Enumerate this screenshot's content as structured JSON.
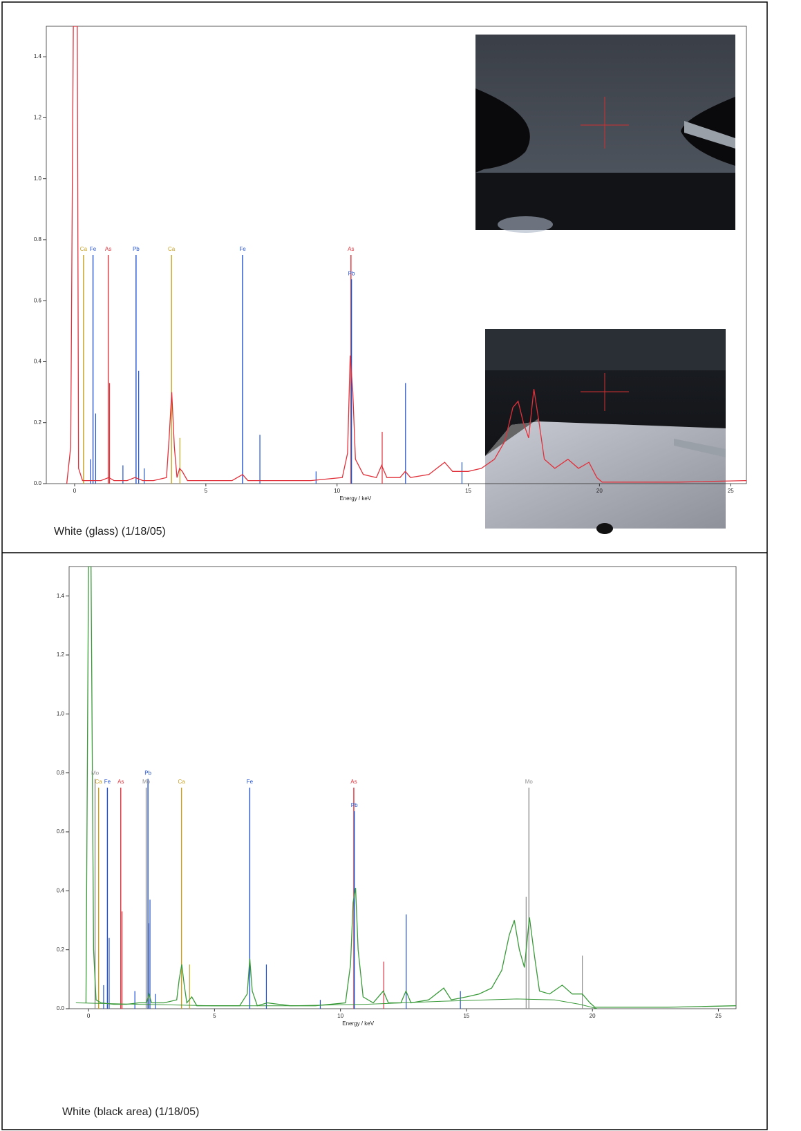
{
  "chart_data": [
    {
      "type": "line",
      "caption": "White (glass) (1/18/05)",
      "x_label": "Energy / keV",
      "xlim": [
        -1.08,
        25.6
      ],
      "xticks": [
        0,
        5,
        10,
        15,
        20,
        25
      ],
      "ylim": [
        0,
        1.5
      ],
      "yticks": [
        {
          "value": 0,
          "label": "0.0"
        },
        0.2,
        0.4,
        0.6,
        0.8,
        {
          "value": 1,
          "label": "1.0"
        },
        1.2,
        1.4
      ],
      "series": [
        {
          "color": "#e0303a",
          "x": [
            -0.3,
            -0.15,
            -0.05,
            0.1,
            0.15,
            0.3,
            0.6,
            1.0,
            1.3,
            1.5,
            2.0,
            2.3,
            2.6,
            3.0,
            3.5,
            3.6,
            3.7,
            3.8,
            3.9,
            4.0,
            4.1,
            4.3,
            5.0,
            6.0,
            6.4,
            6.6,
            7.5,
            9.0,
            10.2,
            10.4,
            10.5,
            10.6,
            10.7,
            11.0,
            11.5,
            11.7,
            11.9,
            12.4,
            12.6,
            12.8,
            13.5,
            14.1,
            14.4,
            15.0,
            15.5,
            16.0,
            16.4,
            16.7,
            16.9,
            17.1,
            17.3,
            17.5,
            17.7,
            17.9,
            18.3,
            18.8,
            19.2,
            19.6,
            19.9,
            20.1,
            21,
            23,
            25.6
          ],
          "values": [
            0,
            0.12,
            1.5,
            1.5,
            0.05,
            0.01,
            0.01,
            0.01,
            0.02,
            0.01,
            0.01,
            0.02,
            0.01,
            0.01,
            0.02,
            0.15,
            0.3,
            0.12,
            0.02,
            0.05,
            0.04,
            0.01,
            0.01,
            0.01,
            0.03,
            0.01,
            0.01,
            0.01,
            0.02,
            0.1,
            0.42,
            0.3,
            0.08,
            0.03,
            0.02,
            0.06,
            0.02,
            0.02,
            0.04,
            0.02,
            0.03,
            0.07,
            0.04,
            0.04,
            0.05,
            0.08,
            0.14,
            0.25,
            0.27,
            0.2,
            0.15,
            0.31,
            0.2,
            0.08,
            0.05,
            0.08,
            0.05,
            0.07,
            0.02,
            0.005,
            0.005,
            0.005,
            0.01
          ]
        }
      ],
      "markers": [
        {
          "label": "Ca",
          "x": 0.34,
          "height": 0.75,
          "color": "#c8a020"
        },
        {
          "label": "Fe",
          "x": 0.7,
          "height": 0.75,
          "color": "#2050d0"
        },
        {
          "label": "As",
          "x": 1.28,
          "height": 0.75,
          "color": "#e0303a"
        },
        {
          "label": "Pb",
          "x": 2.34,
          "height": 0.75,
          "color": "#2050d0"
        },
        {
          "label": "Ca",
          "x": 3.69,
          "height": 0.75,
          "color": "#c8a020"
        },
        {
          "label": "Fe",
          "x": 6.4,
          "height": 0.75,
          "color": "#2050d0"
        },
        {
          "label": "As",
          "x": 10.53,
          "height": 0.75,
          "color": "#e0303a"
        },
        {
          "label": "Pb",
          "x": 10.55,
          "height": 0.67,
          "color": "#2050d0"
        }
      ],
      "lines": [
        {
          "x": 0.6,
          "height": 0.08,
          "color": "#2050d0"
        },
        {
          "x": 0.8,
          "height": 0.23,
          "color": "#2050d0"
        },
        {
          "x": 1.33,
          "height": 0.33,
          "color": "#e0303a"
        },
        {
          "x": 1.84,
          "height": 0.06,
          "color": "#2050d0"
        },
        {
          "x": 2.44,
          "height": 0.37,
          "color": "#2050d0"
        },
        {
          "x": 2.65,
          "height": 0.05,
          "color": "#2050d0"
        },
        {
          "x": 4.01,
          "height": 0.15,
          "color": "#c8a020"
        },
        {
          "x": 7.06,
          "height": 0.16,
          "color": "#2050d0"
        },
        {
          "x": 9.2,
          "height": 0.04,
          "color": "#2050d0"
        },
        {
          "x": 11.72,
          "height": 0.17,
          "color": "#e0303a"
        },
        {
          "x": 12.61,
          "height": 0.33,
          "color": "#2050d0"
        },
        {
          "x": 14.76,
          "height": 0.07,
          "color": "#2050d0"
        }
      ]
    },
    {
      "type": "line",
      "caption": "White (black area) (1/18/05)",
      "x_label": "Energy / keV",
      "xlim": [
        -0.77,
        25.7
      ],
      "xticks": [
        0,
        5,
        10,
        15,
        20,
        25
      ],
      "ylim": [
        0,
        1.5
      ],
      "yticks": [
        {
          "value": 0,
          "label": "0.0"
        },
        0.2,
        0.4,
        0.6,
        0.8,
        {
          "value": 1,
          "label": "1.0"
        },
        1.2,
        1.4
      ],
      "series": [
        {
          "color": "#3a9a3a",
          "x": [
            -0.1,
            0.0,
            0.1,
            0.2,
            0.3,
            0.5,
            1.0,
            1.5,
            2.0,
            2.3,
            2.4,
            2.5,
            3.0,
            3.5,
            3.6,
            3.7,
            3.8,
            3.9,
            4.1,
            4.3,
            5.0,
            6.0,
            6.3,
            6.4,
            6.5,
            6.7,
            7.1,
            8.0,
            9.0,
            10.2,
            10.4,
            10.5,
            10.6,
            10.7,
            10.9,
            11.3,
            11.7,
            11.9,
            12.4,
            12.6,
            12.8,
            13.5,
            14.1,
            14.4,
            15.0,
            15.5,
            16.0,
            16.4,
            16.7,
            16.9,
            17.1,
            17.3,
            17.5,
            17.7,
            17.9,
            18.3,
            18.8,
            19.2,
            19.6,
            19.9,
            20.1,
            21,
            23,
            25.7
          ],
          "values": [
            0.02,
            1.5,
            1.5,
            0.2,
            0.03,
            0.02,
            0.015,
            0.015,
            0.02,
            0.02,
            0.05,
            0.02,
            0.02,
            0.03,
            0.1,
            0.15,
            0.08,
            0.02,
            0.04,
            0.01,
            0.01,
            0.01,
            0.05,
            0.17,
            0.06,
            0.01,
            0.02,
            0.01,
            0.01,
            0.02,
            0.15,
            0.36,
            0.41,
            0.2,
            0.04,
            0.02,
            0.06,
            0.02,
            0.02,
            0.06,
            0.02,
            0.03,
            0.07,
            0.03,
            0.04,
            0.05,
            0.07,
            0.13,
            0.25,
            0.3,
            0.2,
            0.14,
            0.31,
            0.18,
            0.06,
            0.05,
            0.08,
            0.05,
            0.05,
            0.02,
            0.005,
            0.005,
            0.005,
            0.01
          ]
        },
        {
          "color": "#3a9a3a",
          "x": [
            -0.5,
            2,
            5,
            8,
            11,
            14,
            17,
            18.5,
            19.5,
            20.2
          ],
          "values": [
            0.02,
            0.015,
            0.01,
            0.01,
            0.015,
            0.025,
            0.033,
            0.03,
            0.015,
            0.0
          ]
        }
      ],
      "markers": [
        {
          "label": "Mo",
          "x": 0.26,
          "height": 0.78,
          "color": "#909090"
        },
        {
          "label": "Ca",
          "x": 0.4,
          "height": 0.75,
          "color": "#c8a020"
        },
        {
          "label": "Fe",
          "x": 0.75,
          "height": 0.75,
          "color": "#2050d0"
        },
        {
          "label": "As",
          "x": 1.28,
          "height": 0.75,
          "color": "#e0303a"
        },
        {
          "label": "Pb",
          "x": 2.36,
          "height": 0.78,
          "color": "#2050d0"
        },
        {
          "label": "Mo",
          "x": 2.29,
          "height": 0.75,
          "color": "#909090"
        },
        {
          "label": "Ca",
          "x": 3.69,
          "height": 0.75,
          "color": "#c8a020"
        },
        {
          "label": "Fe",
          "x": 6.4,
          "height": 0.75,
          "color": "#2050d0"
        },
        {
          "label": "As",
          "x": 10.53,
          "height": 0.75,
          "color": "#e0303a"
        },
        {
          "label": "Pb",
          "x": 10.55,
          "height": 0.67,
          "color": "#2050d0"
        },
        {
          "label": "Mo",
          "x": 17.48,
          "height": 0.75,
          "color": "#909090"
        }
      ],
      "lines": [
        {
          "x": 0.6,
          "height": 0.08,
          "color": "#2050d0"
        },
        {
          "x": 0.82,
          "height": 0.24,
          "color": "#2050d0"
        },
        {
          "x": 1.33,
          "height": 0.33,
          "color": "#e0303a"
        },
        {
          "x": 1.84,
          "height": 0.06,
          "color": "#2050d0"
        },
        {
          "x": 2.44,
          "height": 0.37,
          "color": "#2050d0"
        },
        {
          "x": 2.39,
          "height": 0.29,
          "color": "#909090"
        },
        {
          "x": 2.65,
          "height": 0.05,
          "color": "#2050d0"
        },
        {
          "x": 4.01,
          "height": 0.15,
          "color": "#c8a020"
        },
        {
          "x": 7.06,
          "height": 0.15,
          "color": "#2050d0"
        },
        {
          "x": 9.2,
          "height": 0.03,
          "color": "#2050d0"
        },
        {
          "x": 11.72,
          "height": 0.16,
          "color": "#e0303a"
        },
        {
          "x": 12.61,
          "height": 0.32,
          "color": "#2050d0"
        },
        {
          "x": 14.76,
          "height": 0.06,
          "color": "#2050d0"
        },
        {
          "x": 17.37,
          "height": 0.38,
          "color": "#909090"
        },
        {
          "x": 19.6,
          "height": 0.18,
          "color": "#909090"
        }
      ]
    }
  ]
}
